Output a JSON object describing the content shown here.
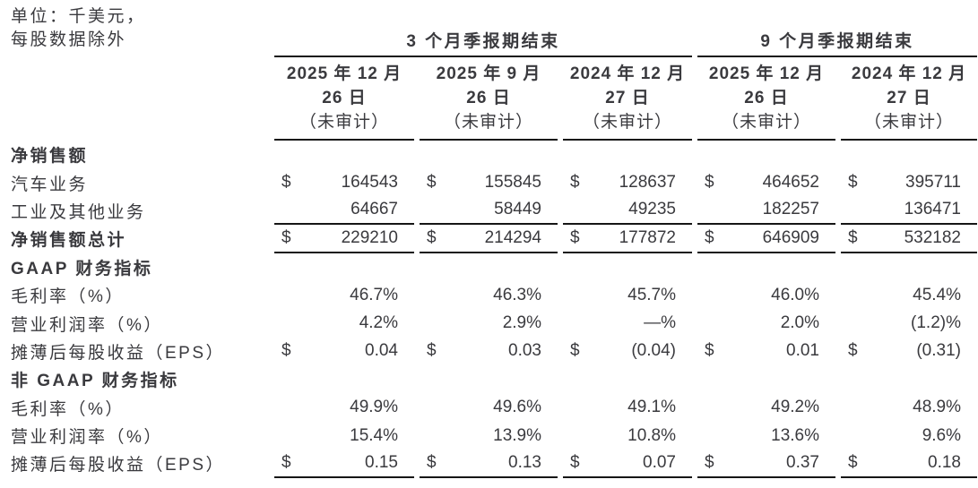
{
  "meta": {
    "unit_line1": "单位：千美元，",
    "unit_line2": "每股数据除外"
  },
  "currency_symbol": "$",
  "header": {
    "groups": [
      {
        "label": "3 个月季报期结束",
        "span": 3
      },
      {
        "label": "9 个月季报期结束",
        "span": 2
      }
    ],
    "columns": [
      {
        "line1": "2025 年 12 月",
        "line2": "26 日",
        "line3": "（未审计）"
      },
      {
        "line1": "2025 年 9 月",
        "line2": "26 日",
        "line3": "（未审计）"
      },
      {
        "line1": "2024 年 12 月",
        "line2": "27 日",
        "line3": "（未审计）"
      },
      {
        "line1": "2025 年 12 月",
        "line2": "26 日",
        "line3": "（未审计）"
      },
      {
        "line1": "2024 年 12 月",
        "line2": "27 日",
        "line3": "（未审计）"
      }
    ]
  },
  "rows": [
    {
      "type": "section",
      "label": "净销售额"
    },
    {
      "type": "data",
      "label": "汽车业务",
      "dollar": true,
      "values": [
        "164543",
        "155845",
        "128637",
        "464652",
        "395711"
      ]
    },
    {
      "type": "data",
      "label": "工业及其他业务",
      "dollar": false,
      "rule_below": true,
      "values": [
        "64667",
        "58449",
        "49235",
        "182257",
        "136471"
      ]
    },
    {
      "type": "data",
      "label": "净销售额总计",
      "bold": true,
      "dollar": true,
      "rule_below": true,
      "values": [
        "229210",
        "214294",
        "177872",
        "646909",
        "532182"
      ]
    },
    {
      "type": "section",
      "label": "GAAP 财务指标"
    },
    {
      "type": "data",
      "label": "毛利率（%）",
      "dollar": false,
      "values": [
        "46.7%",
        "46.3%",
        "45.7%",
        "46.0%",
        "45.4%"
      ]
    },
    {
      "type": "data",
      "label": "营业利润率（%）",
      "dollar": false,
      "values": [
        "4.2%",
        "2.9%",
        "—%",
        "2.0%",
        "(1.2)%"
      ]
    },
    {
      "type": "data",
      "label": "摊薄后每股收益（EPS）",
      "dollar": true,
      "values": [
        "0.04",
        "0.03",
        "(0.04)",
        "0.01",
        "(0.31)"
      ]
    },
    {
      "type": "section",
      "label": "非 GAAP 财务指标"
    },
    {
      "type": "data",
      "label": "毛利率（%）",
      "dollar": false,
      "values": [
        "49.9%",
        "49.6%",
        "49.1%",
        "49.2%",
        "48.9%"
      ]
    },
    {
      "type": "data",
      "label": "营业利润率（%）",
      "dollar": false,
      "values": [
        "15.4%",
        "13.9%",
        "10.8%",
        "13.6%",
        "9.6%"
      ]
    },
    {
      "type": "data",
      "label": "摊薄后每股收益（EPS）",
      "dollar": true,
      "rule_below": true,
      "values": [
        "0.15",
        "0.13",
        "0.07",
        "0.37",
        "0.18"
      ]
    }
  ]
}
